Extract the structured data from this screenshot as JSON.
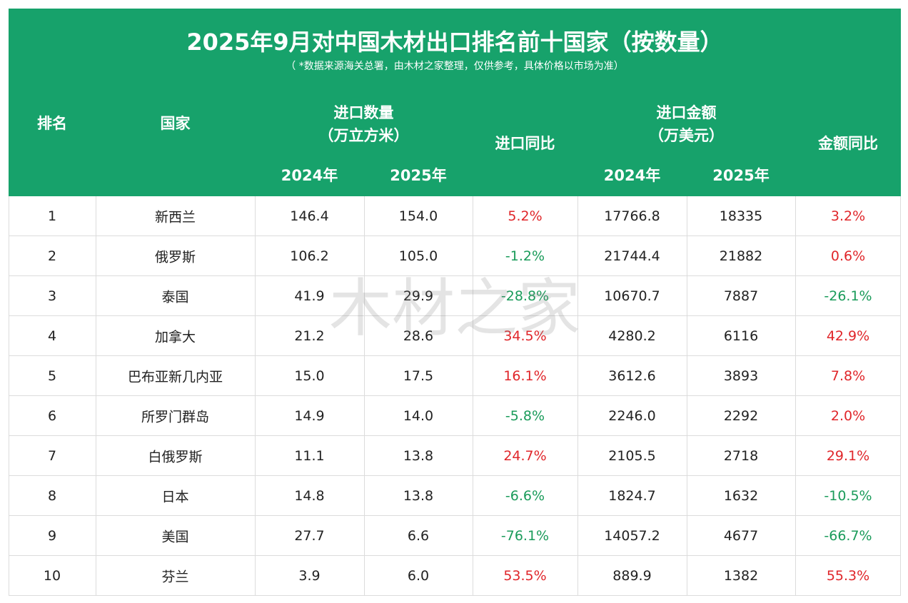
{
  "header": {
    "title": "2025年9月对中国木材出口排名前十国家（按数量）",
    "subtitle": "（ *数据来源海关总署，由木材之家整理，仅供参考，具体价格以市场为准）",
    "watermark": "木材之家"
  },
  "columns": {
    "rank": "排名",
    "country": "国家",
    "volume": {
      "label": "进口数量",
      "unit": "（万立方米）",
      "years": [
        "2024年",
        "2025年"
      ]
    },
    "volume_yoy": "进口同比",
    "value": {
      "label": "进口金额",
      "unit": "（万美元）",
      "years": [
        "2024年",
        "2025年"
      ]
    },
    "value_yoy": "金额同比"
  },
  "table": {
    "rows": [
      [
        "1",
        "新西兰",
        "146.4",
        "154.0",
        "5.2%",
        "17766.8",
        "18335",
        "3.2%"
      ],
      [
        "2",
        "俄罗斯",
        "106.2",
        "105.0",
        "-1.2%",
        "21744.4",
        "21882",
        "0.6%"
      ],
      [
        "3",
        "泰国",
        "41.9",
        "29.9",
        "-28.8%",
        "10670.7",
        "7887",
        "-26.1%"
      ],
      [
        "4",
        "加拿大",
        "21.2",
        "28.6",
        "34.5%",
        "4280.2",
        "6116",
        "42.9%"
      ],
      [
        "5",
        "巴布亚新几内亚",
        "15.0",
        "17.5",
        "16.1%",
        "3612.6",
        "3893",
        "7.8%"
      ],
      [
        "6",
        "所罗门群岛",
        "14.9",
        "14.0",
        "-5.8%",
        "2246.0",
        "2292",
        "2.0%"
      ],
      [
        "7",
        "白俄罗斯",
        "11.1",
        "13.8",
        "24.7%",
        "2105.5",
        "2718",
        "29.1%"
      ],
      [
        "8",
        "日本",
        "14.8",
        "13.8",
        "-6.6%",
        "1824.7",
        "1632",
        "-10.5%"
      ],
      [
        "9",
        "美国",
        "27.7",
        "6.6",
        "-76.1%",
        "14057.2",
        "4677",
        "-66.7%"
      ],
      [
        "10",
        "芬兰",
        "3.9",
        "6.0",
        "53.5%",
        "889.9",
        "1382",
        "55.3%"
      ]
    ]
  }
}
